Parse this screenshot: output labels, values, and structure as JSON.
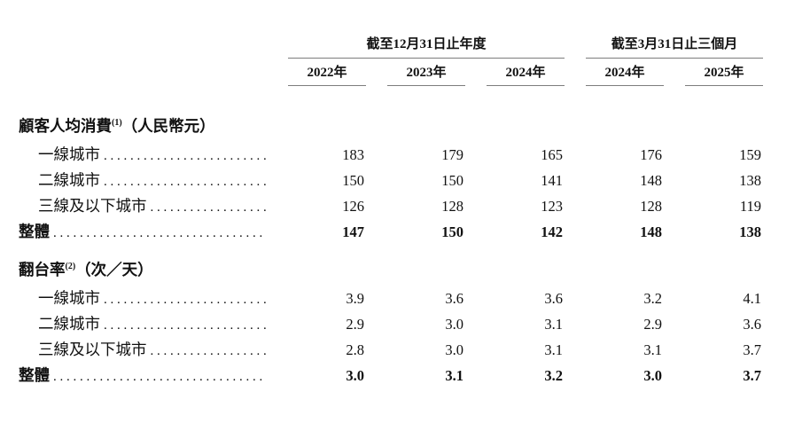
{
  "table": {
    "col_groups": [
      {
        "label": "截至12月31日止年度",
        "span": 3
      },
      {
        "label": "截至3月31日止三個月",
        "span": 2
      }
    ],
    "columns": [
      "2022年",
      "2023年",
      "2024年",
      "2024年",
      "2025年"
    ],
    "sections": [
      {
        "title": "顧客人均消費",
        "title_sup": "(1)",
        "title_suffix": "（人民幣元）",
        "rows": [
          {
            "label": "一線城市",
            "values": [
              "183",
              "179",
              "165",
              "176",
              "159"
            ],
            "bold": false,
            "indent": true
          },
          {
            "label": "二線城市",
            "values": [
              "150",
              "150",
              "141",
              "148",
              "138"
            ],
            "bold": false,
            "indent": true
          },
          {
            "label": "三線及以下城市",
            "values": [
              "126",
              "128",
              "123",
              "128",
              "119"
            ],
            "bold": false,
            "indent": true
          },
          {
            "label": "整體",
            "values": [
              "147",
              "150",
              "142",
              "148",
              "138"
            ],
            "bold": true,
            "indent": false
          }
        ]
      },
      {
        "title": "翻台率",
        "title_sup": "(2)",
        "title_suffix": "（次／天）",
        "rows": [
          {
            "label": "一線城市",
            "values": [
              "3.9",
              "3.6",
              "3.6",
              "3.2",
              "4.1"
            ],
            "bold": false,
            "indent": true
          },
          {
            "label": "二線城市",
            "values": [
              "2.9",
              "3.0",
              "3.1",
              "2.9",
              "3.6"
            ],
            "bold": false,
            "indent": true
          },
          {
            "label": "三線及以下城市",
            "values": [
              "2.8",
              "3.0",
              "3.1",
              "3.1",
              "3.7"
            ],
            "bold": false,
            "indent": true
          },
          {
            "label": "整體",
            "values": [
              "3.0",
              "3.1",
              "3.2",
              "3.0",
              "3.7"
            ],
            "bold": true,
            "indent": false
          }
        ]
      }
    ]
  }
}
